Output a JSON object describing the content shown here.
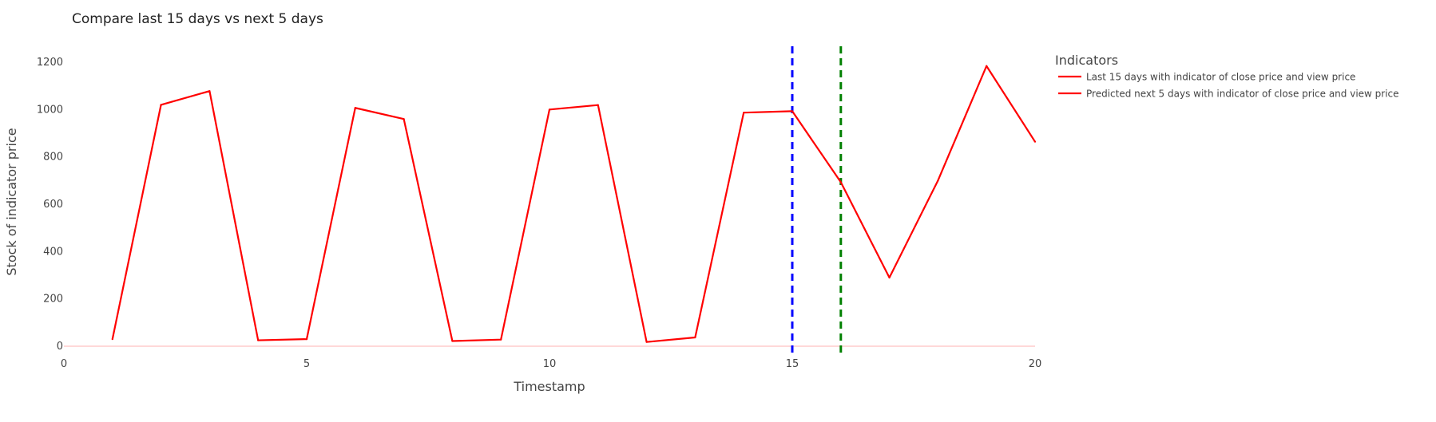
{
  "chart_data": {
    "type": "line",
    "title": "Compare last 15 days vs next 5 days",
    "xlabel": "Timestamp",
    "ylabel": "Stock of indicator price",
    "xlim": [
      0,
      20
    ],
    "ylim": [
      0,
      1260
    ],
    "x_ticks": [
      0,
      5,
      10,
      15,
      20
    ],
    "x_tick_labels": [
      "0",
      "5",
      "10",
      "15",
      "20"
    ],
    "y_ticks": [
      0,
      200,
      400,
      600,
      800,
      1000,
      1200
    ],
    "y_tick_labels": [
      "0",
      "200",
      "400",
      "600",
      "800",
      "1000",
      "1200"
    ],
    "grid": false,
    "zero_line": true,
    "legend": {
      "title": "Indicators",
      "position": "right"
    },
    "series": [
      {
        "name": "Last 15 days with indicator of close price and view price",
        "color": "#ff0000",
        "x": [
          1,
          2,
          3,
          4,
          5,
          6,
          7,
          8,
          9,
          10,
          11,
          12,
          13,
          14,
          15
        ],
        "y": [
          30,
          1020,
          1078,
          25,
          30,
          1007,
          960,
          22,
          28,
          1000,
          1019,
          18,
          37,
          987,
          993
        ]
      },
      {
        "name": "Predicted next 5 days with indicator of close price and view price",
        "color": "#ff0000",
        "x": [
          15,
          16,
          17,
          18,
          19,
          20
        ],
        "y": [
          993,
          693,
          290,
          700,
          1184,
          864
        ]
      }
    ],
    "vertical_lines": [
      {
        "x": 15,
        "color": "#0000ff",
        "dash": "dashed"
      },
      {
        "x": 16,
        "color": "#008000",
        "dash": "dashed"
      }
    ]
  }
}
